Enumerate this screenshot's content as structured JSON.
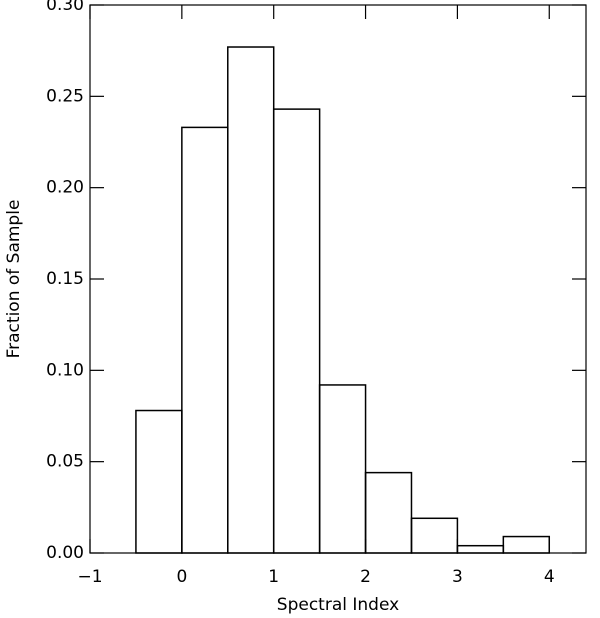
{
  "chart_data": {
    "type": "histogram",
    "xlabel": "Spectral Index",
    "ylabel": "Fraction of Sample",
    "bins": [
      -0.5,
      0,
      0.5,
      1,
      1.5,
      2,
      2.5,
      3,
      3.5,
      4
    ],
    "counts": [
      0.078,
      0.233,
      0.277,
      0.243,
      0.092,
      0.044,
      0.019,
      0.004,
      0.009
    ],
    "color": "#000000",
    "xlim": [
      -1,
      4.4
    ],
    "ylim": [
      0,
      0.3
    ],
    "xticks": [
      {
        "value": -1,
        "label": "−1"
      },
      0,
      1,
      2,
      3,
      4
    ],
    "yticks": [
      {
        "value": 0,
        "label": "0.00"
      },
      {
        "value": 0.05,
        "label": "0.05"
      },
      {
        "value": 0.1,
        "label": "0.10"
      },
      {
        "value": 0.15,
        "label": "0.15"
      },
      {
        "value": 0.2,
        "label": "0.20"
      },
      {
        "value": 0.25,
        "label": "0.25"
      },
      {
        "value": 0.3,
        "label": "0.30"
      }
    ]
  }
}
